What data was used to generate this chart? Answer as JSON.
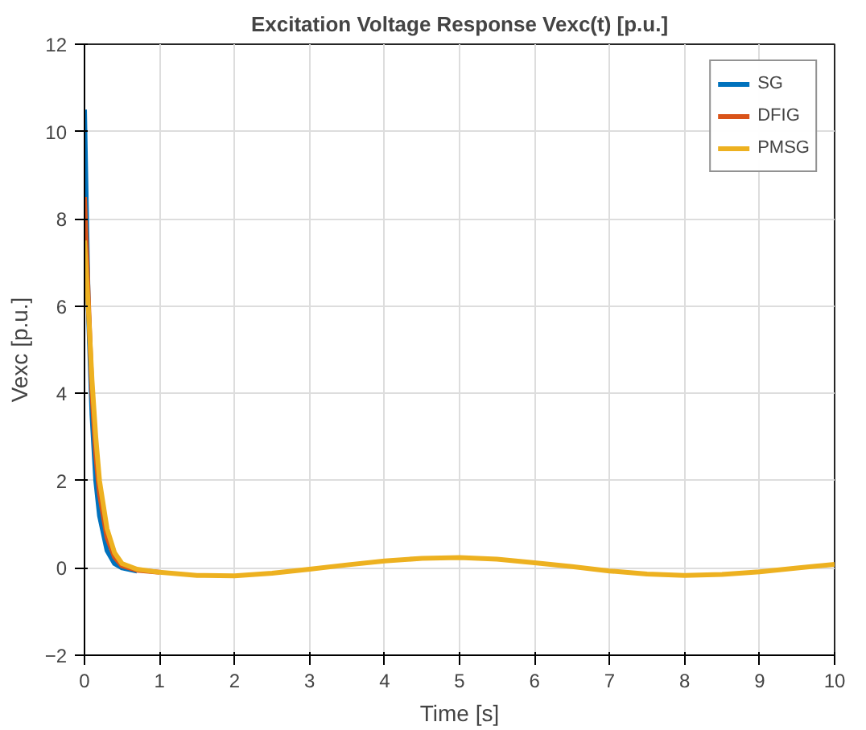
{
  "chart_data": {
    "type": "line",
    "title": "Excitation Voltage Response Vexc(t) [p.u.]",
    "xlabel": "Time [s]",
    "ylabel": "Vexc [p.u.]",
    "x": [
      0,
      0.05,
      0.1,
      0.15,
      0.2,
      0.3,
      0.4,
      0.5,
      0.7,
      1,
      1.5,
      2,
      2.5,
      3,
      3.5,
      4,
      4.5,
      5,
      5.5,
      6,
      6.5,
      7,
      7.5,
      8,
      8.5,
      9,
      9.5,
      10
    ],
    "series": [
      {
        "name": "SG",
        "color": "#0072bd",
        "values": [
          10.5,
          6,
          3.5,
          2,
          1.2,
          0.4,
          0.1,
          0,
          -0.07,
          null,
          null,
          null,
          null,
          null,
          null,
          null,
          null,
          null,
          null,
          null,
          null,
          null,
          null,
          null,
          null,
          null,
          null,
          null
        ]
      },
      {
        "name": "DFIG",
        "color": "#d95319",
        "values": [
          8.5,
          6.2,
          4,
          2.6,
          1.7,
          0.7,
          0.25,
          0.05,
          -0.05,
          -0.1,
          null,
          null,
          null,
          null,
          null,
          null,
          null,
          null,
          null,
          null,
          null,
          null,
          null,
          null,
          null,
          null,
          null,
          null
        ]
      },
      {
        "name": "PMSG",
        "color": "#edb120",
        "values": [
          7.5,
          6,
          4.3,
          3,
          2,
          0.9,
          0.35,
          0.1,
          -0.03,
          -0.1,
          -0.17,
          -0.18,
          -0.12,
          -0.03,
          0.07,
          0.16,
          0.22,
          0.24,
          0.2,
          0.12,
          0.03,
          -0.07,
          -0.14,
          -0.17,
          -0.15,
          -0.09,
          0,
          0.08
        ]
      }
    ],
    "xlim": [
      0,
      10
    ],
    "ylim": [
      -2,
      12
    ],
    "xticks": [
      0,
      1,
      2,
      3,
      4,
      5,
      6,
      7,
      8,
      9,
      10
    ],
    "yticks": [
      -2,
      0,
      2,
      4,
      6,
      8,
      10,
      12
    ],
    "grid": true,
    "legend": "top right",
    "line_style": "solid",
    "marker": "none"
  }
}
